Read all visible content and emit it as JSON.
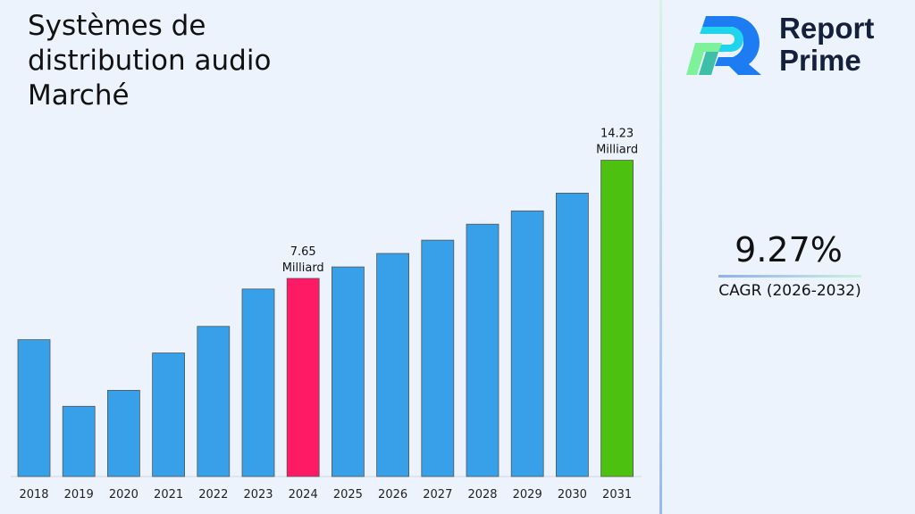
{
  "title": "Systèmes de distribution audio Marché",
  "logo": {
    "line1": "Report",
    "line2": "Prime"
  },
  "cagr": {
    "value": "9.27%",
    "label": "CAGR (2026-2032)"
  },
  "colors": {
    "bar": "#37a0e8",
    "highlight_2024": "#ff1a66",
    "highlight_2031": "#4cc10f",
    "accent_text": "#14213d"
  },
  "chart_data": {
    "type": "bar",
    "categories": [
      "2018",
      "2019",
      "2020",
      "2021",
      "2022",
      "2023",
      "2024",
      "2025",
      "2026",
      "2027",
      "2028",
      "2029",
      "2030",
      "2031"
    ],
    "values": [
      4.24,
      0.53,
      1.42,
      3.5,
      4.98,
      7.06,
      7.65,
      8.29,
      9.04,
      9.78,
      10.67,
      11.41,
      12.4,
      14.23
    ],
    "annotations": [
      {
        "category": "2024",
        "line1": "7.65",
        "line2": "Milliard"
      },
      {
        "category": "2031",
        "line1": "14.23",
        "line2": "Milliard"
      }
    ],
    "ylim": [
      -3.38,
      15.5
    ],
    "grid": false,
    "xlabel": "",
    "ylabel": ""
  }
}
